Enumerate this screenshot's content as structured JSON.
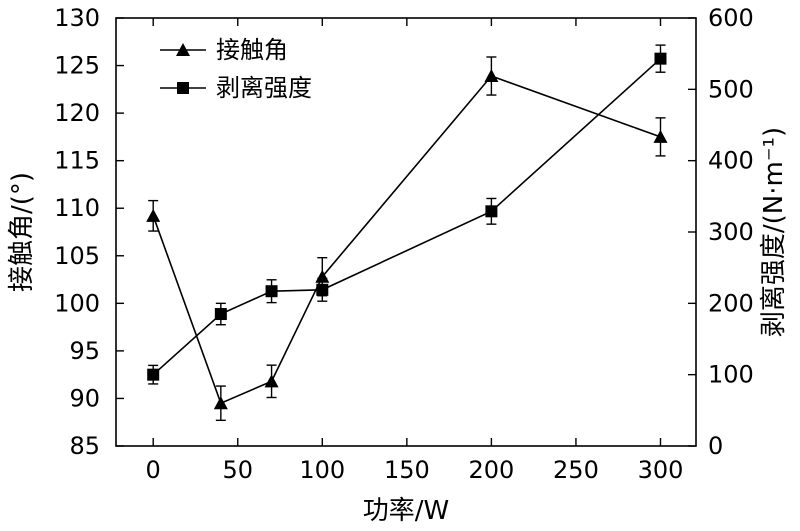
{
  "chart_data": {
    "type": "line",
    "xlabel": "功率/W",
    "ylabel_left": "接触角/(°)",
    "ylabel_right": "剥离强度/(N·m⁻¹)",
    "xlim": [
      -22,
      321
    ],
    "xticks": [
      0,
      50,
      100,
      150,
      200,
      250,
      300
    ],
    "ylim_left": [
      85,
      130
    ],
    "yticks_left": [
      85,
      90,
      95,
      100,
      105,
      110,
      115,
      120,
      125,
      130
    ],
    "ylim_right": [
      0,
      600
    ],
    "yticks_right": [
      0,
      100,
      200,
      300,
      400,
      500,
      600
    ],
    "grid": false,
    "legend_position": "top-left",
    "series": [
      {
        "name": "接触角",
        "axis": "left",
        "marker": "triangle",
        "x": [
          0,
          40,
          70,
          100,
          200,
          300
        ],
        "y": [
          109.2,
          89.5,
          91.8,
          102.8,
          123.9,
          117.5
        ],
        "error": [
          1.6,
          1.8,
          1.7,
          2.0,
          2.0,
          2.0
        ]
      },
      {
        "name": "剥离强度",
        "axis": "right",
        "marker": "square",
        "x": [
          0,
          40,
          70,
          100,
          200,
          300
        ],
        "y": [
          100,
          185,
          217,
          219,
          329,
          543
        ],
        "error": [
          13,
          15,
          16,
          16,
          18,
          19
        ]
      }
    ]
  }
}
